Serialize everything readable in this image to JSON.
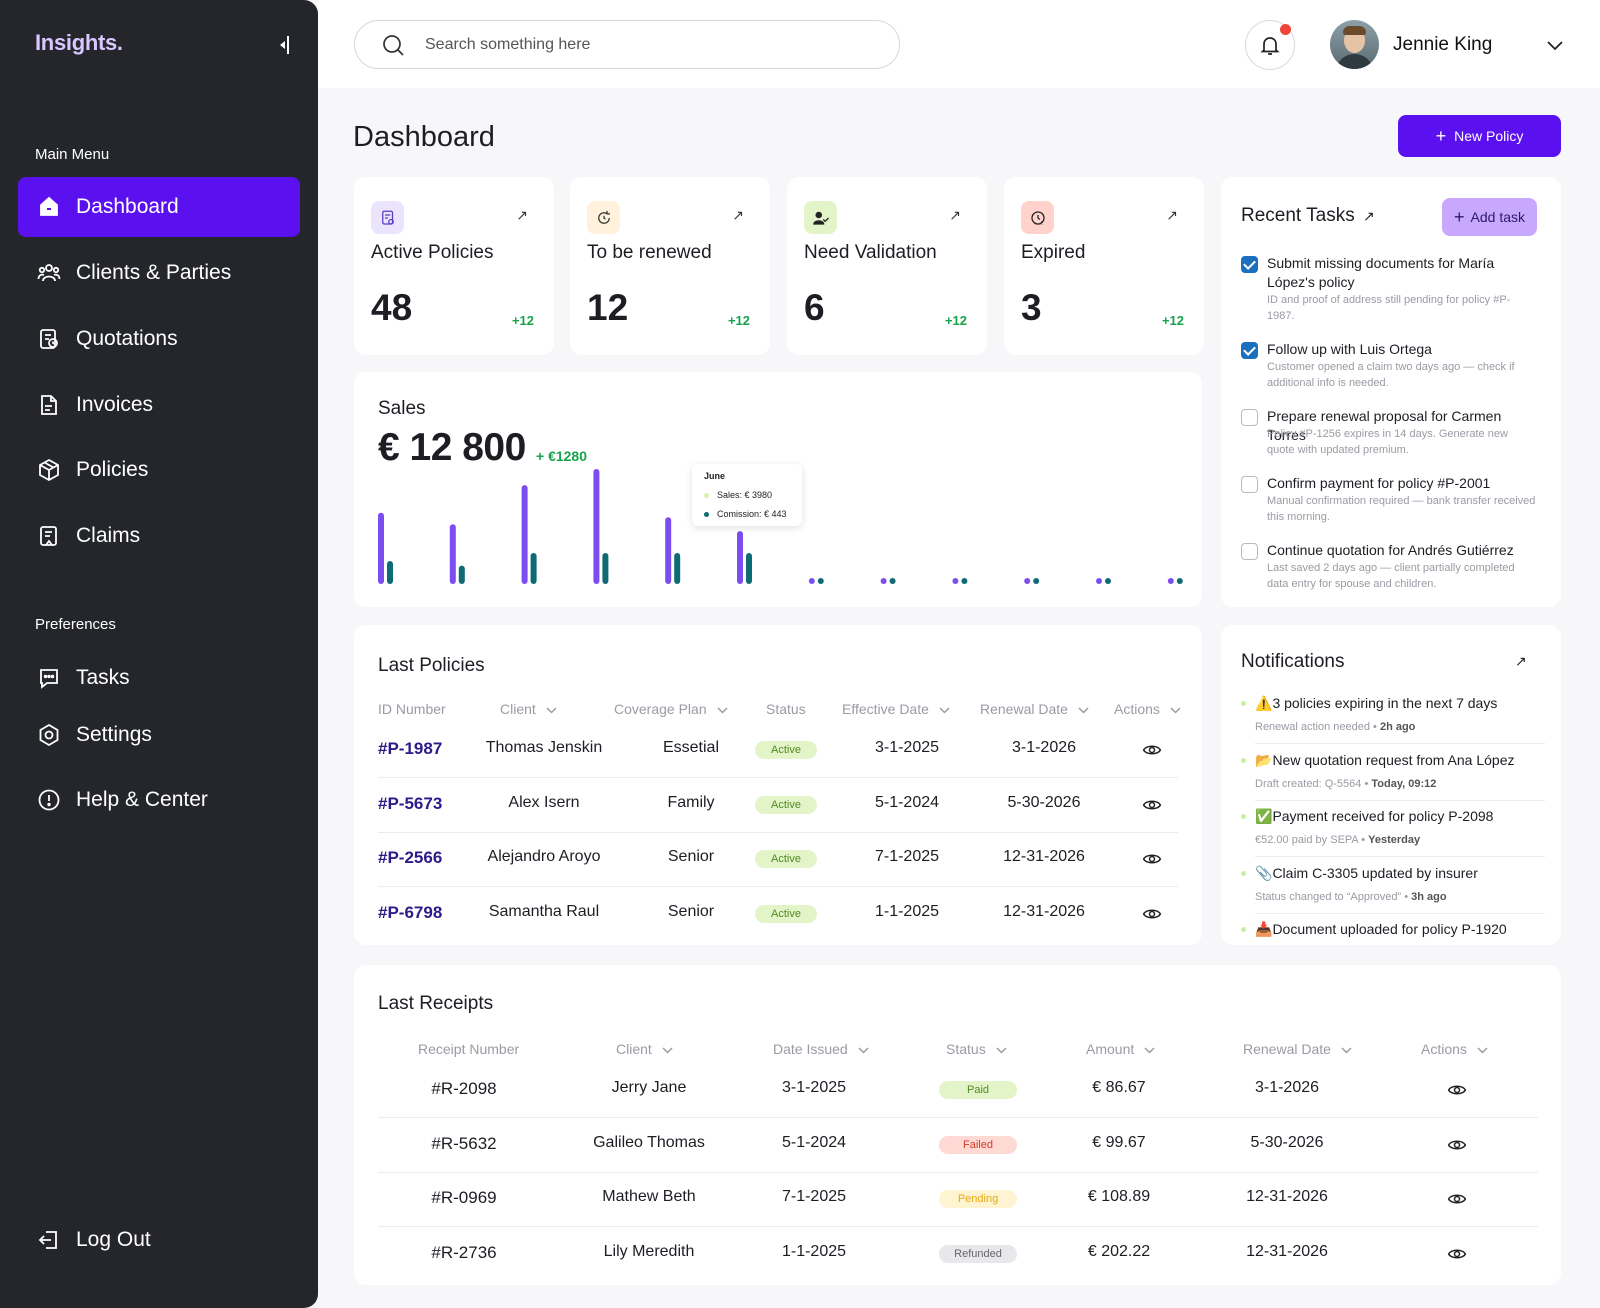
{
  "app": {
    "logo": "Insights.",
    "collapse_icon": "collapse-sidebar-icon"
  },
  "sidebar": {
    "main_menu_title": "Main Menu",
    "main_items": [
      {
        "label": "Dashboard",
        "icon": "home-icon",
        "active": true
      },
      {
        "label": "Clients & Parties",
        "icon": "users-icon"
      },
      {
        "label": "Quotations",
        "icon": "quotation-icon"
      },
      {
        "label": "Invoices",
        "icon": "invoice-icon"
      },
      {
        "label": "Policies",
        "icon": "box-icon"
      },
      {
        "label": "Claims",
        "icon": "claims-icon"
      }
    ],
    "preferences_title": "Preferences",
    "pref_items": [
      {
        "label": "Tasks",
        "icon": "chat-icon"
      },
      {
        "label": "Settings",
        "icon": "settings-icon"
      },
      {
        "label": "Help & Center",
        "icon": "help-icon"
      }
    ],
    "logout_label": "Log Out"
  },
  "header": {
    "search_placeholder": "Search something here",
    "user_name": "Jennie King",
    "notification_color": "#f04438"
  },
  "page": {
    "title": "Dashboard",
    "new_policy_label": "New Policy",
    "accent": "#5b10f0"
  },
  "stats": [
    {
      "label": "Active Policies",
      "value": "48",
      "delta": "+12",
      "icon": "policy-doc-icon",
      "bg": "#ebe4ff",
      "stroke": "#5b3cc4"
    },
    {
      "label": "To be renewed",
      "value": "12",
      "delta": "+12",
      "icon": "renew-icon",
      "bg": "#fff1db",
      "stroke": "#333333"
    },
    {
      "label": "Need Validation",
      "value": "6",
      "delta": "+12",
      "icon": "user-check-icon",
      "bg": "#e3f5c8",
      "stroke": "#333333"
    },
    {
      "label": "Expired",
      "value": "3",
      "delta": "+12",
      "icon": "expired-icon",
      "bg": "#ffd3cc",
      "stroke": "#333333"
    }
  ],
  "sales": {
    "title": "Sales",
    "amount": "€ 12 800",
    "delta": "+ €1280",
    "tooltip": {
      "month": "June",
      "sales": "Sales: € 3980",
      "commission": "Comission: € 443"
    },
    "colors": {
      "sales": "#7b4cf0",
      "commission": "#0e6b73"
    }
  },
  "policies": {
    "title": "Last Policies",
    "columns": [
      "ID Number",
      "Client",
      "Coverage Plan",
      "Status",
      "Effective Date",
      "Renewal Date",
      "Actions"
    ],
    "rows": [
      {
        "id": "#P-1987",
        "client": "Thomas Jenskin",
        "plan": "Essetial",
        "status": "Active",
        "effective": "3-1-2025",
        "renewal": "3-1-2026"
      },
      {
        "id": "#P-5673",
        "client": "Alex Isern",
        "plan": "Family",
        "status": "Active",
        "effective": "5-1-2024",
        "renewal": "5-30-2026"
      },
      {
        "id": "#P-2566",
        "client": "Alejandro Aroyo",
        "plan": "Senior",
        "status": "Active",
        "effective": "7-1-2025",
        "renewal": "12-31-2026"
      },
      {
        "id": "#P-6798",
        "client": "Samantha Raul",
        "plan": "Senior",
        "status": "Active",
        "effective": "1-1-2025",
        "renewal": "12-31-2026"
      }
    ]
  },
  "receipts": {
    "title": "Last Receipts",
    "columns": [
      "Receipt Number",
      "Client",
      "Date Issued",
      "Status",
      "Amount",
      "Renewal Date",
      "Actions"
    ],
    "rows": [
      {
        "id": "#R-2098",
        "client": "Jerry Jane",
        "date": "3-1-2025",
        "status": "Paid",
        "amount": "€ 86.67",
        "renewal": "3-1-2026"
      },
      {
        "id": "#R-5632",
        "client": "Galileo Thomas",
        "date": "5-1-2024",
        "status": "Failed",
        "amount": "€ 99.67",
        "renewal": "5-30-2026"
      },
      {
        "id": "#R-0969",
        "client": "Mathew Beth",
        "date": "7-1-2025",
        "status": "Pending",
        "amount": "€ 108.89",
        "renewal": "12-31-2026"
      },
      {
        "id": "#R-2736",
        "client": "Lily Meredith",
        "date": "1-1-2025",
        "status": "Refunded",
        "amount": "€ 202.22",
        "renewal": "12-31-2026"
      }
    ],
    "status_colors": {
      "Paid": {
        "bg": "#e3f5c8",
        "fg": "#4f8a1e"
      },
      "Failed": {
        "bg": "#ffd9d4",
        "fg": "#d23b2a"
      },
      "Pending": {
        "bg": "#fff4d1",
        "fg": "#e5a913"
      },
      "Refunded": {
        "bg": "#e8e8ec",
        "fg": "#666666"
      }
    }
  },
  "tasks": {
    "title": "Recent Tasks",
    "add_label": "Add task",
    "items": [
      {
        "title": "Submit missing documents for María López's policy",
        "desc": "ID and proof of address still pending for policy #P-1987.",
        "done": true
      },
      {
        "title": "Follow up with Luis Ortega",
        "desc": "Customer opened a claim two days ago — check if additional info is needed.",
        "done": true
      },
      {
        "title": "Prepare renewal proposal for Carmen Torres",
        "desc": "Policy #P-1256 expires in 14 days. Generate new quote with updated premium.",
        "done": false
      },
      {
        "title": "Confirm payment for policy #P-2001",
        "desc": "Manual confirmation required — bank transfer received this morning.",
        "done": false
      },
      {
        "title": "Continue quotation for Andrés Gutiérrez",
        "desc": "Last saved 2 days ago — client partially completed data entry for spouse and children.",
        "done": false
      }
    ]
  },
  "notifications": {
    "title": "Notifications",
    "items": [
      {
        "emoji": "⚠️",
        "text": "3 policies expiring in the next 7 days",
        "sub": "Renewal action needed",
        "time": "2h ago"
      },
      {
        "emoji": "📂",
        "text": "New quotation request from Ana López",
        "sub": "Draft created: Q-5564",
        "time": "Today, 09:12"
      },
      {
        "emoji": "✅",
        "text": "Payment received for policy P-2098",
        "sub": "€52.00 paid by SEPA",
        "time": "Yesterday"
      },
      {
        "emoji": "📎",
        "text": "Claim C-3305 updated by insurer",
        "sub": "Status changed to “Approved”",
        "time": "3h ago"
      },
      {
        "emoji": "📥",
        "text": "Document uploaded for policy P-1920",
        "sub": "",
        "time": ""
      }
    ]
  }
}
